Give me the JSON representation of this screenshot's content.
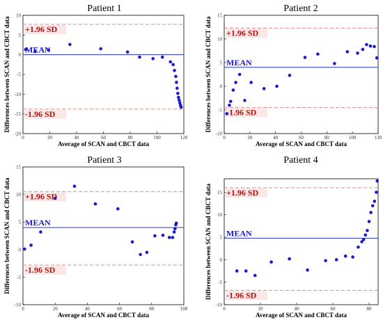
{
  "colors": {
    "points": "#1a1acc",
    "mean_line": "#2233cc",
    "sd_line": "#d98c8c",
    "sd_label": "#b01010",
    "mean_label": "#1a1acc",
    "label_bg": "#fbe3e3"
  },
  "chart_data": [
    {
      "type": "scatter",
      "title": "Patient 1",
      "xlabel": "Average of SCAN and CBCT data",
      "ylabel": "Differences between SCAN and CBCT data",
      "xlim": [
        0,
        120
      ],
      "ylim": [
        -20,
        10
      ],
      "xticks": [
        0,
        20,
        40,
        60,
        80,
        100,
        120
      ],
      "yticks": [
        -20,
        -15,
        -10,
        -5,
        0,
        5,
        10
      ],
      "mean": 0,
      "upper": 7.7,
      "lower": -13.8,
      "mean_label": "MEAN",
      "upper_label": "+1.96 SD",
      "lower_label": "-1.96 SD",
      "x": [
        2,
        9,
        19,
        35,
        58,
        78,
        87,
        97,
        104,
        110,
        112,
        113,
        114,
        114.5,
        115,
        115.5,
        116,
        116.5,
        117,
        117.5,
        118
      ],
      "y": [
        1.3,
        0.8,
        1.2,
        2.6,
        1.5,
        0.7,
        -0.6,
        -1.0,
        -0.6,
        -1.8,
        -2.5,
        -4.0,
        -5.5,
        -7.0,
        -8.5,
        -9.8,
        -10.8,
        -11.5,
        -12.2,
        -12.8,
        -13.3
      ]
    },
    {
      "type": "scatter",
      "title": "Patient 2",
      "xlabel": "Average of SCAN and CBCT data",
      "ylabel": "Differences between SCAN and CBCT data",
      "xlim": [
        0,
        120
      ],
      "ylim": [
        -10,
        15
      ],
      "xticks": [
        0,
        20,
        40,
        60,
        80,
        100,
        120
      ],
      "yticks": [
        -10,
        -5,
        0,
        5,
        10,
        15
      ],
      "mean": 4.0,
      "upper": 12.3,
      "lower": -4.5,
      "mean_label": "MEAN",
      "upper_label": "+1.96 SD",
      "lower_label": "-1.96 SD",
      "x": [
        2,
        4,
        5,
        7,
        9,
        12,
        16,
        21,
        31,
        41,
        51,
        63,
        73,
        86,
        96,
        104,
        108,
        111,
        114,
        117,
        119
      ],
      "y": [
        -5.8,
        -4.0,
        -3.2,
        -0.8,
        0.8,
        2.5,
        -3.0,
        0.8,
        -0.5,
        0.0,
        2.3,
        6.1,
        6.8,
        4.8,
        7.3,
        7.0,
        7.8,
        8.8,
        8.5,
        8.4,
        6.0
      ]
    },
    {
      "type": "scatter",
      "title": "Patient 3",
      "xlabel": "Average of SCAN and CBCT data",
      "ylabel": "Differences between SCAN and CBCT data",
      "xlim": [
        0,
        100
      ],
      "ylim": [
        -10,
        15
      ],
      "xticks": [
        0,
        20,
        40,
        60,
        80,
        100
      ],
      "yticks": [
        -10,
        -5,
        0,
        5,
        10,
        15
      ],
      "mean": 4.0,
      "upper": 10.5,
      "lower": -2.8,
      "mean_label": "MEAN",
      "upper_label": "+1.96 SD",
      "lower_label": "-1.96 SD",
      "x": [
        1,
        5,
        11,
        20,
        32,
        45,
        59,
        68,
        73,
        77,
        82,
        87,
        91,
        93,
        94,
        94.5,
        95,
        95.3
      ],
      "y": [
        0.1,
        0.8,
        3.2,
        9.3,
        11.5,
        8.3,
        7.4,
        1.4,
        -0.9,
        -0.5,
        2.5,
        2.6,
        2.2,
        2.2,
        3.2,
        3.8,
        4.5,
        4.8
      ]
    },
    {
      "type": "scatter",
      "title": "Patient 4",
      "xlabel": "Average of SCAN and CBCT data",
      "ylabel": "Differences between SCAN and CBCT data",
      "xlim": [
        0,
        85
      ],
      "ylim": [
        -10,
        18
      ],
      "xticks": [
        0,
        20,
        40,
        60,
        80
      ],
      "yticks": [
        -10,
        -5,
        0,
        5,
        10,
        15
      ],
      "mean": 4.8,
      "upper": 16.0,
      "lower": -6.8,
      "mean_label": "MEAN",
      "upper_label": "+1.96 SD",
      "lower_label": "-1.96 SD",
      "x": [
        7,
        12,
        17,
        26,
        36,
        46,
        56,
        62,
        67,
        71,
        74,
        76,
        77,
        78,
        79,
        80,
        81,
        82,
        83,
        84,
        84.5
      ],
      "y": [
        -2.5,
        -2.5,
        -3.5,
        -0.5,
        0.2,
        -2.3,
        -0.2,
        0.0,
        0.8,
        0.6,
        2.8,
        4.0,
        4.5,
        5.5,
        6.5,
        8.5,
        10.5,
        12.0,
        13.0,
        15.0,
        17.5
      ]
    }
  ]
}
